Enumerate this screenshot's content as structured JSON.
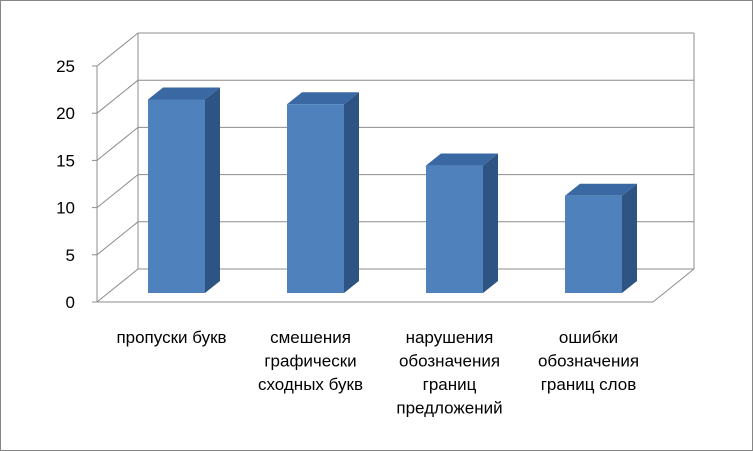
{
  "chart_data": {
    "type": "bar",
    "categories": [
      [
        "пропуски букв"
      ],
      [
        "смешения",
        "графически",
        "сходных букв"
      ],
      [
        "нарушения",
        "обозначения",
        "границ",
        "предложений"
      ],
      [
        "ошибки",
        "обозначения",
        "границ слов"
      ]
    ],
    "values": [
      20.5,
      20,
      13.5,
      10.3
    ],
    "ylim": [
      0,
      25
    ],
    "yticks": [
      "0",
      "5",
      "10",
      "15",
      "20",
      "25"
    ],
    "grid": true,
    "legend": "none",
    "colors": {
      "bar_front": "#4F81BD",
      "bar_side": "#2E5483",
      "bar_top": "#3A68A2",
      "grid": "#8C8C8C",
      "border": "#868686"
    }
  }
}
